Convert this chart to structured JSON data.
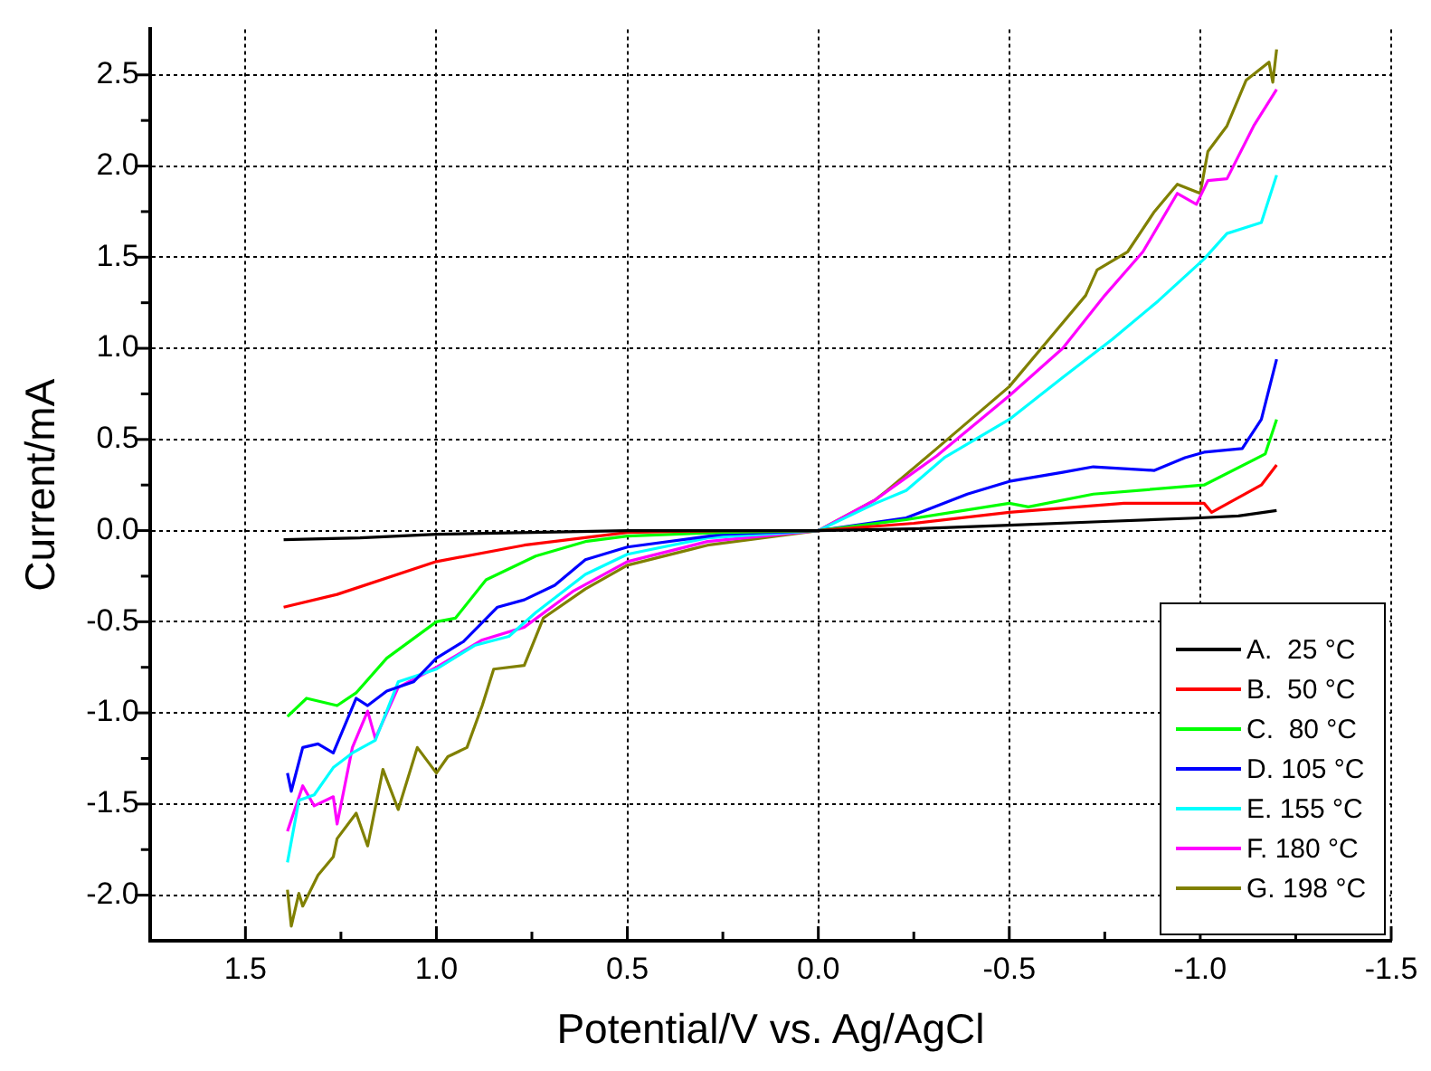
{
  "chart_data": {
    "type": "line",
    "xlabel": "Potential/V vs. Ag/AgCl",
    "ylabel": "Current/mA",
    "xlim": [
      1.75,
      -1.5
    ],
    "xticks": [
      1.5,
      {
        "value": 1.25,
        "label": null
      },
      {
        "value": 1,
        "label": "1.0"
      },
      {
        "value": 0.75,
        "label": null
      },
      0.5,
      {
        "value": 0.25,
        "label": null
      },
      {
        "value": 0,
        "label": "0.0"
      },
      {
        "value": -0.25,
        "label": null
      },
      -0.5,
      {
        "value": -0.75,
        "label": null
      },
      {
        "value": -1,
        "label": "-1.0"
      },
      {
        "value": -1.25,
        "label": null
      },
      -1.5
    ],
    "ylim": [
      -2.25,
      2.75
    ],
    "yticks": [
      {
        "value": -2,
        "label": "-2.0"
      },
      {
        "value": -1.75,
        "label": null
      },
      -1.5,
      {
        "value": -1.25,
        "label": null
      },
      {
        "value": -1,
        "label": "-1.0"
      },
      {
        "value": -0.75,
        "label": null
      },
      -0.5,
      {
        "value": -0.25,
        "label": null
      },
      {
        "value": 0,
        "label": "0.0"
      },
      {
        "value": 0.25,
        "label": null
      },
      0.5,
      {
        "value": 0.75,
        "label": null
      },
      {
        "value": 1,
        "label": "1.0"
      },
      {
        "value": 1.25,
        "label": null
      },
      1.5,
      {
        "value": 1.75,
        "label": null
      },
      {
        "value": 2,
        "label": "2.0"
      },
      {
        "value": 2.25,
        "label": null
      },
      2.5
    ],
    "grid": true,
    "legend": "bottom right",
    "marker": "none",
    "line_style": "solid",
    "series": [
      {
        "name": "A.  25 °C",
        "color": "#000000",
        "x": [
          1.4,
          1.2,
          1.0,
          0.75,
          0.5,
          0.25,
          0,
          -0.25,
          -0.5,
          -0.75,
          -1.0,
          -1.1,
          -1.2
        ],
        "values": [
          -0.05,
          -0.04,
          -0.02,
          -0.01,
          0,
          0,
          0,
          0.01,
          0.03,
          0.05,
          0.07,
          0.08,
          0.11
        ]
      },
      {
        "name": "B.  50 °C",
        "color": "#ff0000",
        "x": [
          1.4,
          1.26,
          1.0,
          0.77,
          0.5,
          0.25,
          0,
          -0.25,
          -0.5,
          -0.8,
          -1.01,
          -1.03,
          -1.16,
          -1.2
        ],
        "values": [
          -0.42,
          -0.35,
          -0.17,
          -0.08,
          -0.01,
          0,
          0,
          0.04,
          0.1,
          0.15,
          0.15,
          0.1,
          0.25,
          0.36
        ]
      },
      {
        "name": "C.  80 °C",
        "color": "#00ff00",
        "x": [
          1.39,
          1.34,
          1.26,
          1.21,
          1.13,
          1.0,
          0.95,
          0.87,
          0.74,
          0.61,
          0.5,
          0.25,
          0,
          -0.23,
          -0.5,
          -0.55,
          -0.72,
          -1.01,
          -1.17,
          -1.2
        ],
        "values": [
          -1.02,
          -0.92,
          -0.96,
          -0.89,
          -0.7,
          -0.5,
          -0.48,
          -0.27,
          -0.14,
          -0.06,
          -0.03,
          -0.01,
          0,
          0.06,
          0.15,
          0.13,
          0.2,
          0.25,
          0.42,
          0.61
        ]
      },
      {
        "name": "D. 105 °C",
        "color": "#0000ff",
        "x": [
          1.39,
          1.38,
          1.35,
          1.31,
          1.27,
          1.21,
          1.18,
          1.13,
          1.06,
          1.0,
          0.93,
          0.84,
          0.77,
          0.69,
          0.61,
          0.5,
          0.25,
          0,
          -0.23,
          -0.39,
          -0.5,
          -0.64,
          -0.72,
          -0.88,
          -0.96,
          -1.01,
          -1.11,
          -1.16,
          -1.2
        ],
        "values": [
          -1.33,
          -1.43,
          -1.19,
          -1.17,
          -1.22,
          -0.92,
          -0.96,
          -0.88,
          -0.83,
          -0.7,
          -0.61,
          -0.42,
          -0.38,
          -0.3,
          -0.16,
          -0.09,
          -0.02,
          0,
          0.07,
          0.2,
          0.27,
          0.32,
          0.35,
          0.33,
          0.4,
          0.43,
          0.45,
          0.61,
          0.94
        ]
      },
      {
        "name": "E. 155 °C",
        "color": "#00ffff",
        "x": [
          1.39,
          1.36,
          1.32,
          1.27,
          1.22,
          1.16,
          1.1,
          1.0,
          0.9,
          0.81,
          0.74,
          0.61,
          0.5,
          0.29,
          0,
          -0.15,
          -0.23,
          -0.33,
          -0.5,
          -0.64,
          -0.77,
          -0.89,
          -1.01,
          -1.07,
          -1.16,
          -1.2
        ],
        "values": [
          -1.82,
          -1.48,
          -1.45,
          -1.3,
          -1.22,
          -1.15,
          -0.83,
          -0.76,
          -0.63,
          -0.58,
          -0.45,
          -0.24,
          -0.13,
          -0.04,
          0,
          0.15,
          0.22,
          0.4,
          0.61,
          0.84,
          1.05,
          1.26,
          1.49,
          1.63,
          1.69,
          1.95
        ]
      },
      {
        "name": "F. 180 °C",
        "color": "#ff00ff",
        "x": [
          1.39,
          1.35,
          1.32,
          1.27,
          1.26,
          1.22,
          1.18,
          1.16,
          1.1,
          1.0,
          0.88,
          0.77,
          0.64,
          0.5,
          0.29,
          0,
          -0.15,
          -0.31,
          -0.5,
          -0.64,
          -0.75,
          -0.85,
          -0.94,
          -0.99,
          -1.02,
          -1.07,
          -1.14,
          -1.2
        ],
        "values": [
          -1.65,
          -1.4,
          -1.51,
          -1.46,
          -1.61,
          -1.19,
          -0.99,
          -1.14,
          -0.86,
          -0.75,
          -0.6,
          -0.53,
          -0.33,
          -0.17,
          -0.06,
          0,
          0.17,
          0.41,
          0.74,
          1.0,
          1.29,
          1.53,
          1.85,
          1.79,
          1.92,
          1.93,
          2.22,
          2.42
        ]
      },
      {
        "name": "G. 198 °C",
        "color": "#808000",
        "x": [
          1.39,
          1.38,
          1.36,
          1.35,
          1.31,
          1.27,
          1.26,
          1.21,
          1.18,
          1.14,
          1.1,
          1.05,
          1.0,
          0.97,
          0.92,
          0.88,
          0.85,
          0.77,
          0.72,
          0.61,
          0.5,
          0.29,
          0,
          -0.15,
          -0.18,
          -0.31,
          -0.5,
          -0.6,
          -0.7,
          -0.73,
          -0.81,
          -0.88,
          -0.94,
          -1.0,
          -1.02,
          -1.07,
          -1.12,
          -1.18,
          -1.19,
          -1.2
        ],
        "values": [
          -1.97,
          -2.17,
          -1.99,
          -2.06,
          -1.89,
          -1.79,
          -1.69,
          -1.55,
          -1.73,
          -1.31,
          -1.53,
          -1.19,
          -1.33,
          -1.24,
          -1.19,
          -0.96,
          -0.76,
          -0.74,
          -0.48,
          -0.32,
          -0.19,
          -0.08,
          0,
          0.17,
          0.22,
          0.45,
          0.79,
          1.04,
          1.29,
          1.43,
          1.53,
          1.75,
          1.9,
          1.85,
          2.08,
          2.22,
          2.47,
          2.57,
          2.46,
          2.64
        ]
      }
    ]
  }
}
